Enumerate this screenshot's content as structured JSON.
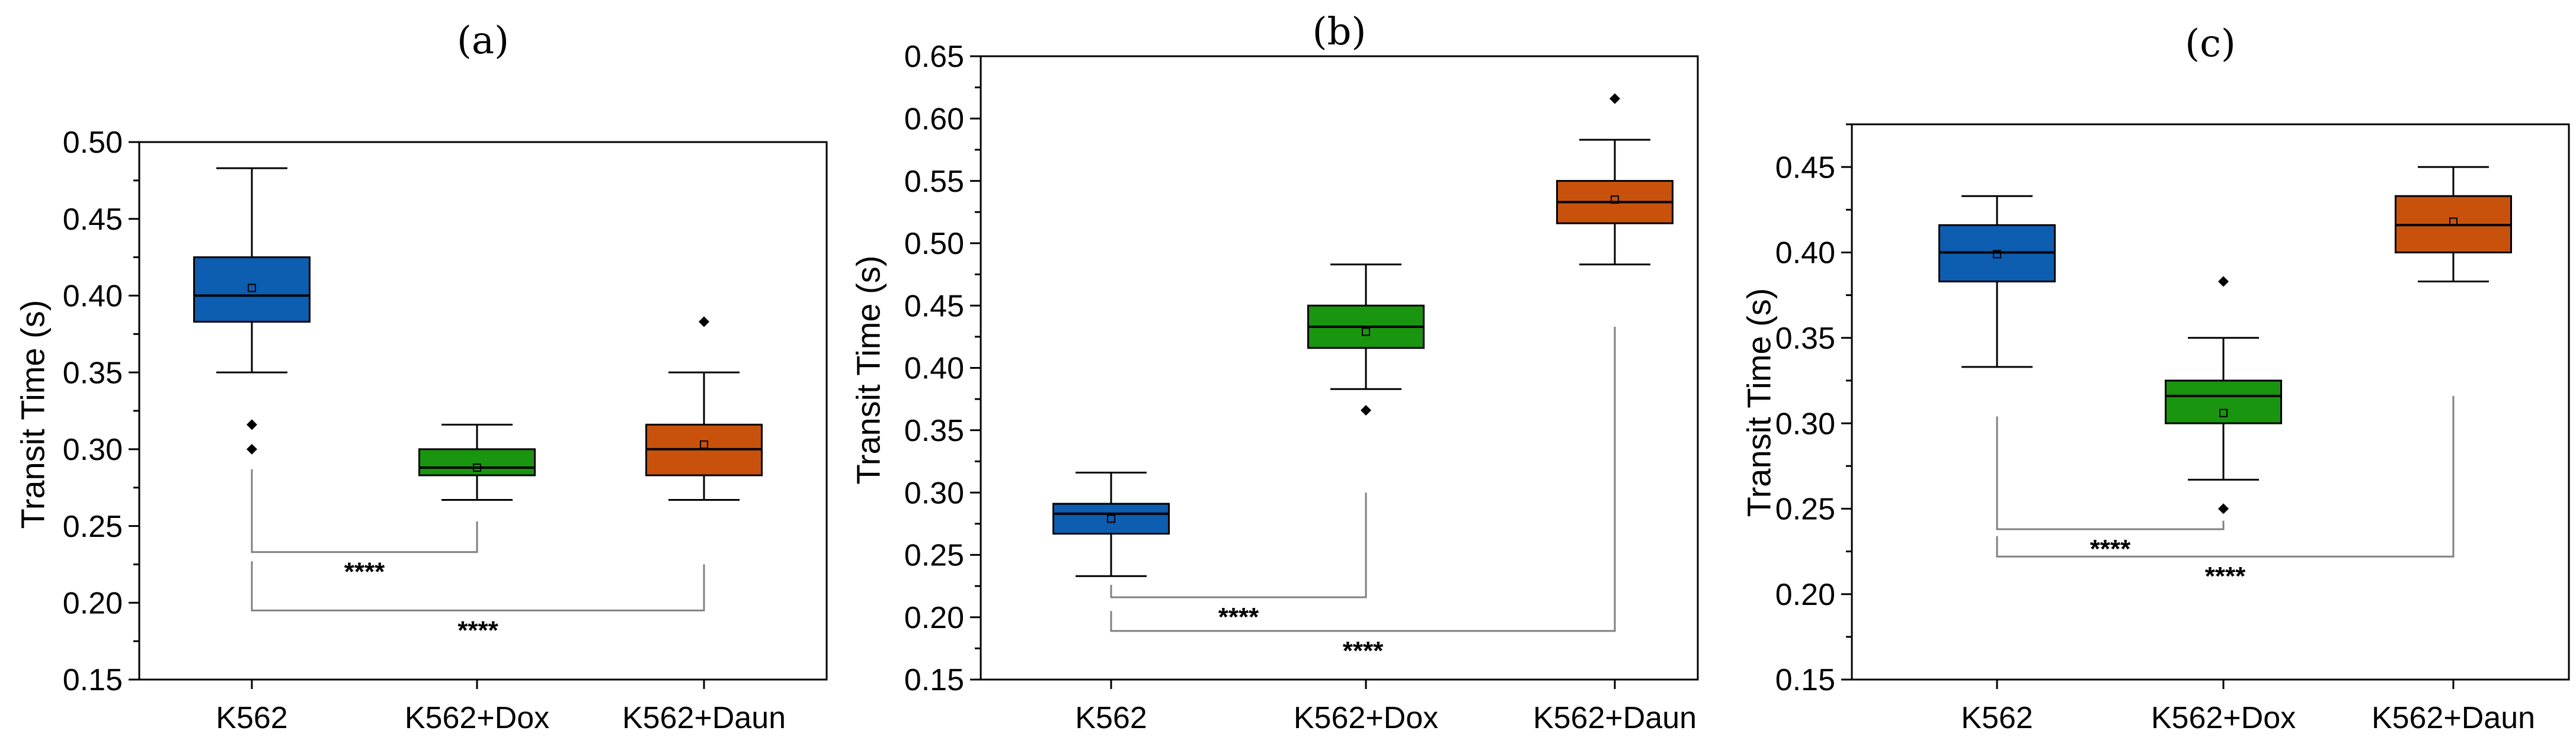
{
  "colors": {
    "K562": "#0d5db0",
    "K562+Dox": "#19950f",
    "K562+Daun": "#c8520c",
    "bracket": "#808080"
  },
  "chart_data": [
    {
      "type": "box",
      "title": "(a)",
      "ylabel": "Transit Time (s)",
      "ylim": [
        0.15,
        0.5
      ],
      "yticks": [
        "0.15",
        "0.20",
        "0.25",
        "0.30",
        "0.35",
        "0.40",
        "0.45",
        "0.50"
      ],
      "categories": [
        "K562",
        "K562+Dox",
        "K562+Daun"
      ],
      "boxes": [
        {
          "category": "K562",
          "whisker_low": 0.35,
          "q1": 0.383,
          "median": 0.4,
          "q3": 0.425,
          "whisker_high": 0.483,
          "mean": 0.405,
          "outliers": [
            0.3,
            0.316
          ]
        },
        {
          "category": "K562+Dox",
          "whisker_low": 0.267,
          "q1": 0.283,
          "median": 0.288,
          "q3": 0.3,
          "whisker_high": 0.316,
          "mean": 0.288,
          "outliers": []
        },
        {
          "category": "K562+Daun",
          "whisker_low": 0.267,
          "q1": 0.283,
          "median": 0.3,
          "q3": 0.316,
          "whisker_high": 0.35,
          "mean": 0.303,
          "outliers": [
            0.383
          ]
        }
      ],
      "brackets": [
        {
          "from": "K562",
          "to": "K562+Dox",
          "label": "****",
          "y": 0.233,
          "left_top": 0.287,
          "right_top": 0.253
        },
        {
          "from": "K562",
          "to": "K562+Daun",
          "label": "****",
          "y": 0.195,
          "left_top": 0.227,
          "right_top": 0.225
        }
      ]
    },
    {
      "type": "box",
      "title": "(b)",
      "ylabel": "Transit Time (s)",
      "ylim": [
        0.15,
        0.65
      ],
      "yticks": [
        "0.15",
        "0.20",
        "0.25",
        "0.30",
        "0.35",
        "0.40",
        "0.45",
        "0.50",
        "0.55",
        "0.60",
        "0.65"
      ],
      "categories": [
        "K562",
        "K562+Dox",
        "K562+Daun"
      ],
      "boxes": [
        {
          "category": "K562",
          "whisker_low": 0.233,
          "q1": 0.267,
          "median": 0.283,
          "q3": 0.291,
          "whisker_high": 0.316,
          "mean": 0.279,
          "outliers": []
        },
        {
          "category": "K562+Dox",
          "whisker_low": 0.383,
          "q1": 0.416,
          "median": 0.433,
          "q3": 0.45,
          "whisker_high": 0.483,
          "mean": 0.429,
          "outliers": [
            0.366
          ]
        },
        {
          "category": "K562+Daun",
          "whisker_low": 0.483,
          "q1": 0.516,
          "median": 0.533,
          "q3": 0.55,
          "whisker_high": 0.583,
          "mean": 0.535,
          "outliers": [
            0.616
          ]
        }
      ],
      "brackets": [
        {
          "from": "K562",
          "to": "K562+Dox",
          "label": "****",
          "y": 0.216,
          "left_top": 0.226,
          "right_top": 0.3
        },
        {
          "from": "K562",
          "to": "K562+Daun",
          "label": "****",
          "y": 0.189,
          "left_top": 0.205,
          "right_top": 0.433
        }
      ]
    },
    {
      "type": "box",
      "title": "(c)",
      "ylabel": "Transit Time (s)",
      "ylim": [
        0.15,
        0.475
      ],
      "yticks": [
        "0.15",
        "0.20",
        "0.25",
        "0.30",
        "0.35",
        "0.40",
        "0.45"
      ],
      "categories": [
        "K562",
        "K562+Dox",
        "K562+Daun"
      ],
      "boxes": [
        {
          "category": "K562",
          "whisker_low": 0.333,
          "q1": 0.383,
          "median": 0.4,
          "q3": 0.416,
          "whisker_high": 0.433,
          "mean": 0.399,
          "outliers": []
        },
        {
          "category": "K562+Dox",
          "whisker_low": 0.267,
          "q1": 0.3,
          "median": 0.316,
          "q3": 0.325,
          "whisker_high": 0.35,
          "mean": 0.306,
          "outliers": [
            0.25,
            0.383
          ]
        },
        {
          "category": "K562+Daun",
          "whisker_low": 0.383,
          "q1": 0.4,
          "median": 0.416,
          "q3": 0.433,
          "whisker_high": 0.45,
          "mean": 0.418,
          "outliers": []
        }
      ],
      "brackets": [
        {
          "from": "K562",
          "to": "K562+Dox",
          "label": "****",
          "y": 0.238,
          "left_top": 0.304,
          "right_top": 0.243
        },
        {
          "from": "K562",
          "to": "K562+Daun",
          "label": "****",
          "y": 0.222,
          "left_top": 0.234,
          "right_top": 0.316
        }
      ]
    }
  ]
}
